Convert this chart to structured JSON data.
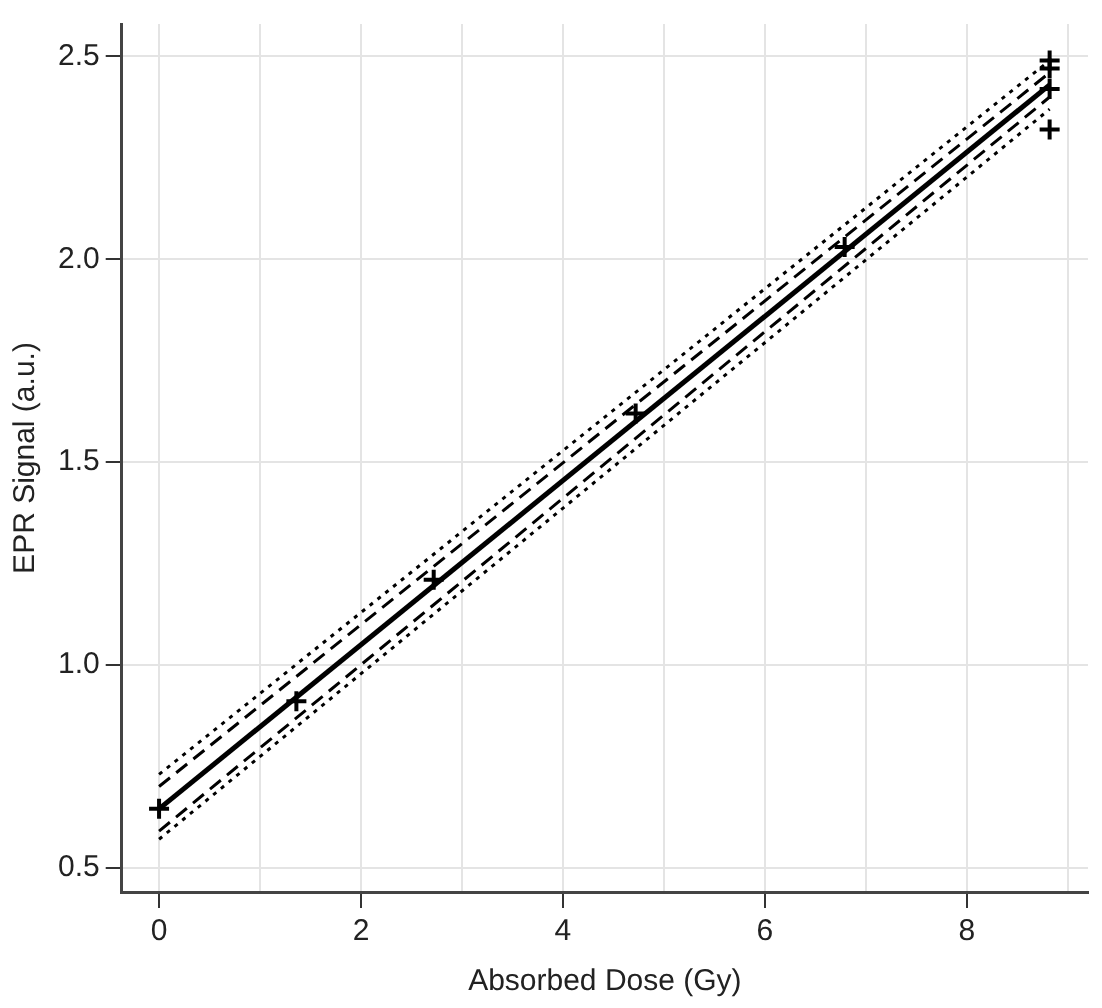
{
  "chart_data": {
    "type": "scatter",
    "xlabel": "Absorbed Dose (Gy)",
    "ylabel": "EPR Signal (a.u.)",
    "xlim": [
      -0.37,
      9.2
    ],
    "ylim": [
      0.44,
      2.58
    ],
    "xticks": [
      0,
      {
        "value": 1,
        "label": null
      },
      2,
      {
        "value": 3,
        "label": null
      },
      4,
      {
        "value": 5,
        "label": null
      },
      6,
      {
        "value": 7,
        "label": null
      },
      8,
      {
        "value": 9,
        "label": null
      }
    ],
    "yticks": [
      0.5,
      {
        "value": 1,
        "label": "1.0"
      },
      1.5,
      {
        "value": 2,
        "label": "2.0"
      },
      2.5
    ],
    "grid": true,
    "marker": "cross",
    "series": [
      {
        "type": "scatter",
        "color": "#000000",
        "x": [
          0,
          1.36,
          2.72,
          4.72,
          6.79,
          8.82,
          8.82,
          8.82,
          8.82
        ],
        "values": [
          0.645,
          0.91,
          1.21,
          1.62,
          2.03,
          2.49,
          2.47,
          2.42,
          2.32
        ]
      },
      {
        "type": "line",
        "color": "#000000",
        "line_style": "solid",
        "marker": "none",
        "x": [
          0,
          8.82
        ],
        "values": [
          0.645,
          2.43
        ]
      },
      {
        "type": "line",
        "color": "#000000",
        "line_style": "dashed",
        "marker": "none",
        "x": [
          0,
          8.82
        ],
        "values": [
          0.7,
          2.46
        ]
      },
      {
        "type": "line",
        "color": "#000000",
        "line_style": "dashed",
        "marker": "none",
        "x": [
          0,
          8.82
        ],
        "values": [
          0.59,
          2.4
        ]
      },
      {
        "type": "line",
        "color": "#000000",
        "line_style": "dotted",
        "marker": "none",
        "x": [
          0,
          8.82
        ],
        "values": [
          0.73,
          2.49
        ]
      },
      {
        "type": "line",
        "color": "#000000",
        "line_style": "dotted",
        "marker": "none",
        "x": [
          0,
          8.82
        ],
        "values": [
          0.57,
          2.37
        ]
      }
    ]
  }
}
